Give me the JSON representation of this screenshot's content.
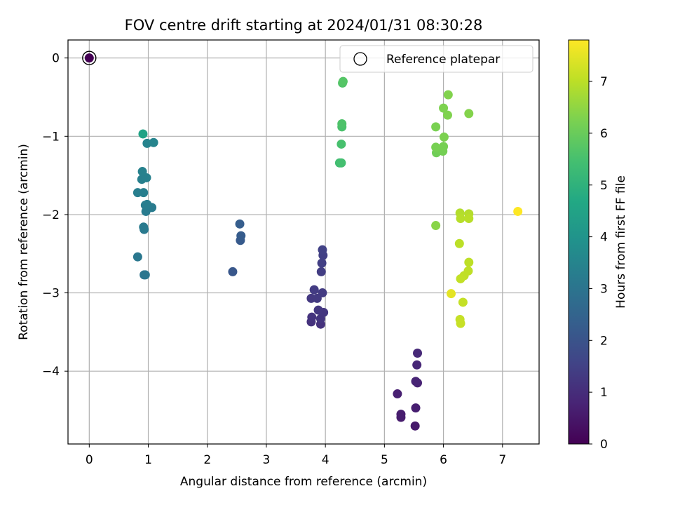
{
  "chart_data": {
    "type": "scatter",
    "title": "FOV centre drift starting at 2024/01/31 08:30:28",
    "xlabel": "Angular distance from reference (arcmin)",
    "ylabel": "Rotation from reference (arcmin)",
    "xlim": [
      -0.36,
      7.62
    ],
    "ylim": [
      -4.93,
      0.23
    ],
    "x_ticks": [
      0,
      1,
      2,
      3,
      4,
      5,
      6,
      7
    ],
    "y_ticks": [
      0,
      -1,
      -2,
      -3,
      -4
    ],
    "x_tick_labels": [
      "0",
      "1",
      "2",
      "3",
      "4",
      "5",
      "6",
      "7"
    ],
    "y_tick_labels": [
      "0",
      "−1",
      "−2",
      "−3",
      "−4"
    ],
    "grid": true,
    "legend": {
      "position": "top-right",
      "entries": [
        "Reference platepar"
      ]
    },
    "colorbar": {
      "label": "Hours from first FF file",
      "range": [
        0,
        7.8
      ],
      "ticks": [
        0,
        1,
        2,
        3,
        4,
        5,
        6,
        7
      ],
      "tick_labels": [
        "0",
        "1",
        "2",
        "3",
        "4",
        "5",
        "6",
        "7"
      ],
      "colormap": "viridis"
    },
    "reference_point": {
      "x": 0,
      "y": 0,
      "c": 0
    },
    "points": [
      [
        0.0,
        0.0,
        0.0
      ],
      [
        5.52,
        -4.7,
        0.55
      ],
      [
        5.28,
        -4.59,
        0.6
      ],
      [
        5.28,
        -4.55,
        0.62
      ],
      [
        5.53,
        -4.47,
        0.65
      ],
      [
        5.22,
        -4.29,
        0.7
      ],
      [
        5.56,
        -4.15,
        0.75
      ],
      [
        5.53,
        -4.13,
        0.8
      ],
      [
        5.55,
        -3.92,
        0.85
      ],
      [
        5.56,
        -3.77,
        0.9
      ],
      [
        3.92,
        -3.4,
        1.1
      ],
      [
        3.76,
        -3.37,
        1.13
      ],
      [
        3.77,
        -3.31,
        1.16
      ],
      [
        3.92,
        -3.33,
        1.19
      ],
      [
        3.97,
        -3.25,
        1.22
      ],
      [
        3.88,
        -3.22,
        1.25
      ],
      [
        3.76,
        -3.07,
        1.28
      ],
      [
        3.86,
        -3.07,
        1.31
      ],
      [
        3.95,
        -3.0,
        1.34
      ],
      [
        3.81,
        -2.96,
        1.37
      ],
      [
        3.93,
        -2.73,
        1.4
      ],
      [
        3.94,
        -2.62,
        1.43
      ],
      [
        3.96,
        -2.52,
        1.46
      ],
      [
        3.95,
        -2.45,
        1.5
      ],
      [
        2.43,
        -2.73,
        2.1
      ],
      [
        2.56,
        -2.33,
        2.2
      ],
      [
        2.57,
        -2.27,
        2.25
      ],
      [
        2.55,
        -2.12,
        2.3
      ],
      [
        0.93,
        -2.77,
        3.0
      ],
      [
        0.95,
        -2.77,
        3.05
      ],
      [
        0.82,
        -2.54,
        3.1
      ],
      [
        0.93,
        -2.19,
        3.15
      ],
      [
        0.92,
        -2.16,
        3.18
      ],
      [
        1.06,
        -1.91,
        3.2
      ],
      [
        0.96,
        -1.96,
        3.22
      ],
      [
        0.95,
        -1.88,
        3.25
      ],
      [
        0.98,
        -1.87,
        3.28
      ],
      [
        0.82,
        -1.72,
        3.3
      ],
      [
        0.92,
        -1.72,
        3.32
      ],
      [
        0.89,
        -1.55,
        3.35
      ],
      [
        0.97,
        -1.53,
        3.38
      ],
      [
        0.9,
        -1.45,
        3.4
      ],
      [
        0.98,
        -1.09,
        3.45
      ],
      [
        1.09,
        -1.08,
        3.5
      ],
      [
        0.91,
        -0.97,
        4.5
      ],
      [
        4.24,
        -1.34,
        5.4
      ],
      [
        4.27,
        -1.34,
        5.45
      ],
      [
        4.27,
        -1.1,
        5.5
      ],
      [
        4.28,
        -0.88,
        5.55
      ],
      [
        4.28,
        -0.84,
        5.6
      ],
      [
        4.29,
        -0.32,
        5.65
      ],
      [
        4.3,
        -0.3,
        5.7
      ],
      [
        5.88,
        -1.21,
        6.1
      ],
      [
        5.9,
        -1.16,
        6.12
      ],
      [
        5.95,
        -1.17,
        6.14
      ],
      [
        5.99,
        -1.19,
        6.16
      ],
      [
        6.0,
        -1.13,
        6.18
      ],
      [
        5.87,
        -1.14,
        6.2
      ],
      [
        5.87,
        -0.88,
        6.22
      ],
      [
        6.01,
        -1.01,
        6.25
      ],
      [
        6.0,
        -0.64,
        6.28
      ],
      [
        6.07,
        -0.73,
        6.3
      ],
      [
        6.08,
        -0.47,
        6.32
      ],
      [
        6.43,
        -0.71,
        6.35
      ],
      [
        5.87,
        -2.14,
        6.4
      ],
      [
        6.28,
        -1.98,
        6.9
      ],
      [
        6.43,
        -1.99,
        6.92
      ],
      [
        6.29,
        -2.05,
        6.95
      ],
      [
        6.43,
        -2.05,
        6.97
      ],
      [
        6.27,
        -2.37,
        7.0
      ],
      [
        6.43,
        -2.61,
        7.02
      ],
      [
        6.42,
        -2.72,
        7.04
      ],
      [
        6.35,
        -2.78,
        7.06
      ],
      [
        6.29,
        -2.82,
        7.08
      ],
      [
        6.33,
        -3.12,
        7.1
      ],
      [
        6.28,
        -3.34,
        7.12
      ],
      [
        6.29,
        -3.39,
        7.14
      ],
      [
        6.13,
        -3.01,
        7.5
      ],
      [
        7.26,
        -1.96,
        7.8
      ]
    ]
  }
}
